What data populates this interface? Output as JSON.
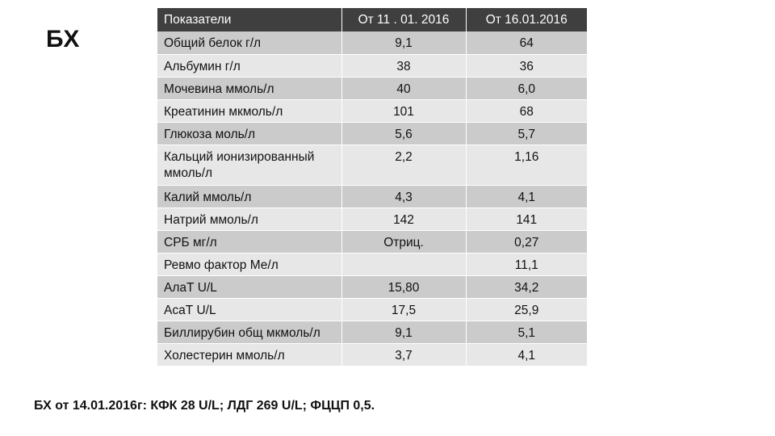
{
  "slide": {
    "title": "БХ",
    "footnote": "БХ от 14.01.2016г: КФК 28 U/L;  ЛДГ 269 U/L; ФЦЦП 0,5."
  },
  "table": {
    "headers": [
      "Показатели",
      "От 11 . 01. 2016",
      "От 16.01.2016"
    ],
    "rows": [
      {
        "name": "Общий белок г/л",
        "v1": "9,1",
        "v2": "64"
      },
      {
        "name": "Альбумин г/л",
        "v1": "38",
        "v2": "36"
      },
      {
        "name": "Мочевина  ммоль/л",
        "v1": "40",
        "v2": "6,0"
      },
      {
        "name": "Креатинин мкмоль/л",
        "v1": "101",
        "v2": "68"
      },
      {
        "name": "Глюкоза моль/л",
        "v1": "5,6",
        "v2": "5,7"
      },
      {
        "name": "Кальций ионизированный ммоль/л",
        "v1": "2,2",
        "v2": "1,16"
      },
      {
        "name": "Калий ммоль/л",
        "v1": "4,3",
        "v2": "4,1"
      },
      {
        "name": "Натрий ммоль/л",
        "v1": "142",
        "v2": "141"
      },
      {
        "name": "СРБ мг/л",
        "v1": "Отриц.",
        "v2": "0,27"
      },
      {
        "name": "Ревмо фактор Ме/л",
        "v1": "",
        "v2": "11,1"
      },
      {
        "name": "АлаТ U/L",
        "v1": "15,80",
        "v2": "34,2"
      },
      {
        "name": "АсаТ U/L",
        "v1": "17,5",
        "v2": "25,9"
      },
      {
        "name": "Биллирубин общ мкмоль/л",
        "v1": "9,1",
        "v2": "5,1"
      },
      {
        "name": "Холестерин ммоль/л",
        "v1": "3,7",
        "v2": "4,1"
      }
    ]
  }
}
